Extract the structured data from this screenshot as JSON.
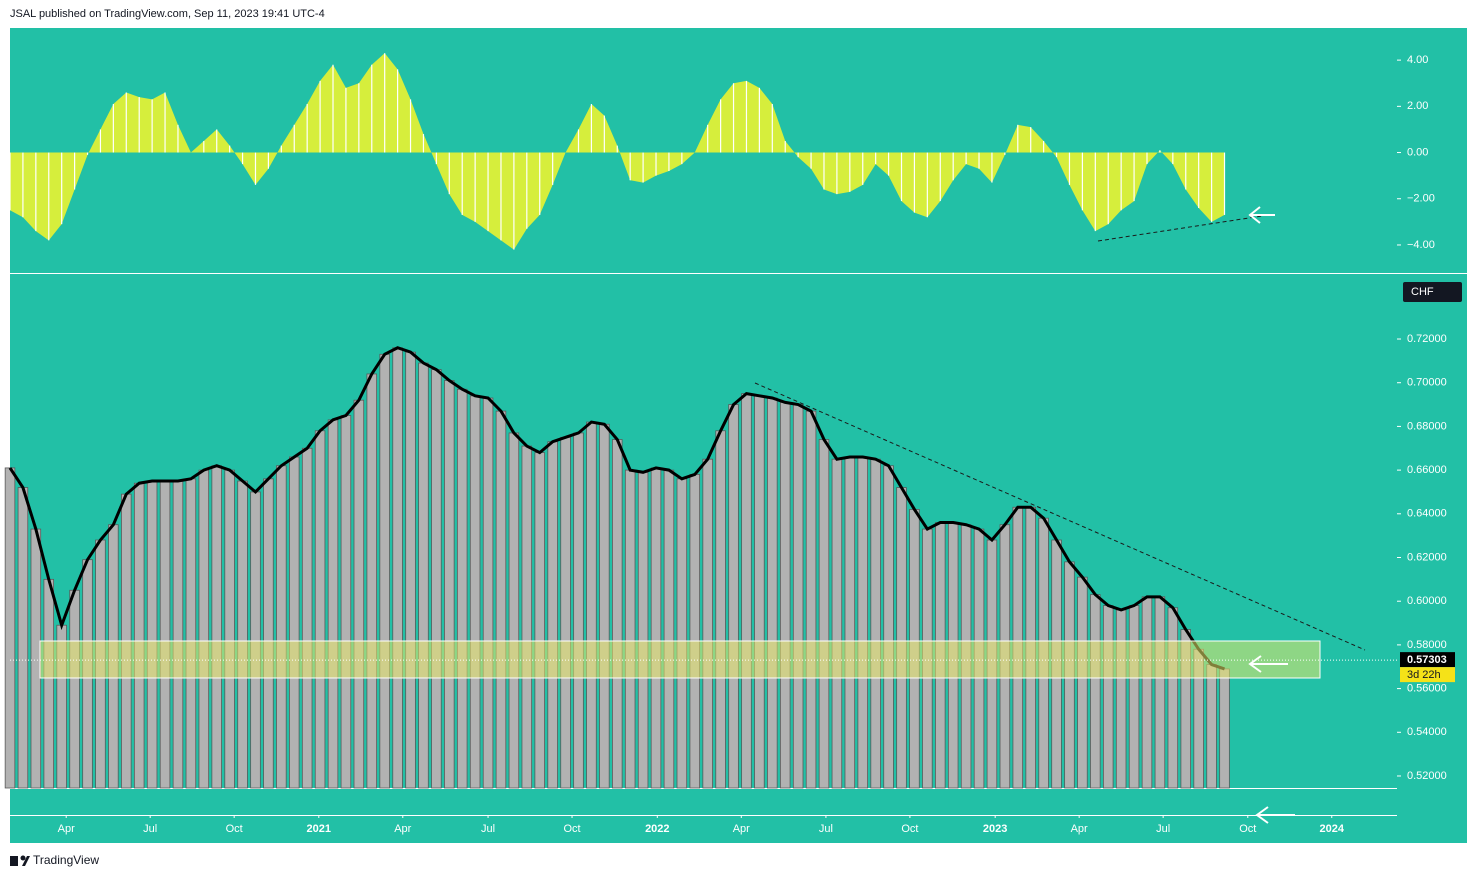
{
  "header": "JSAL published on TradingView.com, Sep 11, 2023 19:41 UTC-4",
  "footer": "TradingView",
  "chart_data": [
    {
      "type": "area",
      "xlim": [
        0,
        214.7
      ],
      "ylim": [
        -5.17,
        5.39
      ],
      "yticks": [
        {
          "value": 4,
          "label": "4.00"
        },
        {
          "value": 2,
          "label": "2.00"
        },
        {
          "value": 0,
          "label": "0.00"
        },
        {
          "value": -2,
          "label": "−2.00"
        },
        {
          "value": -4,
          "label": "−4.00"
        }
      ],
      "color": "#d6ee3c",
      "x": [
        0,
        2,
        4,
        6,
        8,
        10,
        12,
        14,
        16,
        18,
        20,
        22,
        24,
        26,
        28,
        30,
        32,
        34,
        36,
        38,
        40,
        42,
        44,
        46,
        48,
        50,
        52,
        54,
        56,
        58,
        60,
        62,
        64,
        66,
        68,
        70,
        72,
        74,
        76,
        78,
        80,
        82,
        84,
        86,
        88,
        90,
        92,
        94,
        96,
        98,
        100,
        102,
        104,
        106,
        108,
        110,
        112,
        114,
        116,
        118,
        120,
        122,
        124,
        126,
        128,
        130,
        132,
        134,
        136,
        138,
        140,
        142,
        144,
        146,
        148,
        150,
        152,
        154,
        156,
        158,
        160,
        162,
        164,
        166,
        168,
        170,
        172,
        174,
        176,
        178,
        180,
        182,
        184,
        186,
        188
      ],
      "values": [
        -2.5,
        -2.8,
        -3.4,
        -3.8,
        -3.1,
        -1.6,
        -0.1,
        1.0,
        2.1,
        2.6,
        2.4,
        2.3,
        2.6,
        1.2,
        0.0,
        0.5,
        1.0,
        0.3,
        -0.5,
        -1.4,
        -0.7,
        0.3,
        1.2,
        2.1,
        3.1,
        3.8,
        2.8,
        3.0,
        3.8,
        4.3,
        3.6,
        2.3,
        0.8,
        -0.5,
        -1.8,
        -2.7,
        -3.0,
        -3.4,
        -3.8,
        -4.2,
        -3.3,
        -2.7,
        -1.4,
        0.0,
        1.0,
        2.1,
        1.6,
        0.3,
        -1.2,
        -1.3,
        -1.0,
        -0.8,
        -0.5,
        0.0,
        1.2,
        2.3,
        3.0,
        3.1,
        2.8,
        2.1,
        0.5,
        -0.2,
        -0.7,
        -1.6,
        -1.8,
        -1.7,
        -1.4,
        -0.5,
        -1.0,
        -2.1,
        -2.6,
        -2.8,
        -2.1,
        -1.2,
        -0.5,
        -0.7,
        -1.3,
        -0.1,
        1.2,
        1.1,
        0.5,
        -0.2,
        -1.4,
        -2.5,
        -3.4,
        -3.1,
        -2.5,
        -2.1,
        -0.5,
        0.1,
        -0.5,
        -1.6,
        -2.4,
        -3.0,
        -2.7
      ]
    },
    {
      "type": "bar",
      "currency": "CHF",
      "last_price": 0.57303,
      "countdown": "3d 22h",
      "xlim": [
        0,
        214.7
      ],
      "xticks": [
        {
          "value": 8.7,
          "label": "Apr"
        },
        {
          "value": 21.7,
          "label": "Jul"
        },
        {
          "value": 34.7,
          "label": "Oct"
        },
        {
          "value": 47.8,
          "label": "2021"
        },
        {
          "value": 60.8,
          "label": "Apr"
        },
        {
          "value": 74,
          "label": "Jul"
        },
        {
          "value": 87,
          "label": "Oct"
        },
        {
          "value": 100.2,
          "label": "2022"
        },
        {
          "value": 113.2,
          "label": "Apr"
        },
        {
          "value": 126.3,
          "label": "Jul"
        },
        {
          "value": 139.3,
          "label": "Oct"
        },
        {
          "value": 152.5,
          "label": "2023"
        },
        {
          "value": 165.5,
          "label": "Apr"
        },
        {
          "value": 178.5,
          "label": "Jul"
        },
        {
          "value": 191.6,
          "label": "Oct"
        },
        {
          "value": 204.6,
          "label": "2024"
        }
      ],
      "ylim": [
        0.5145,
        0.7493
      ],
      "yticks": [
        {
          "value": 0.52,
          "label": "0.52000"
        },
        {
          "value": 0.54,
          "label": "0.54000"
        },
        {
          "value": 0.56,
          "label": "0.56000"
        },
        {
          "value": 0.58,
          "label": "0.58000"
        },
        {
          "value": 0.6,
          "label": "0.60000"
        },
        {
          "value": 0.62,
          "label": "0.62000"
        },
        {
          "value": 0.64,
          "label": "0.64000"
        },
        {
          "value": 0.66,
          "label": "0.66000"
        },
        {
          "value": 0.68,
          "label": "0.68000"
        },
        {
          "value": 0.7,
          "label": "0.70000"
        },
        {
          "value": 0.72,
          "label": "0.72000"
        }
      ],
      "color": "#b2b2b2",
      "x": [
        0,
        2,
        4,
        6,
        8,
        10,
        12,
        14,
        16,
        18,
        20,
        22,
        24,
        26,
        28,
        30,
        32,
        34,
        36,
        38,
        40,
        42,
        44,
        46,
        48,
        50,
        52,
        54,
        56,
        58,
        60,
        62,
        64,
        66,
        68,
        70,
        72,
        74,
        76,
        78,
        80,
        82,
        84,
        86,
        88,
        90,
        92,
        94,
        96,
        98,
        100,
        102,
        104,
        106,
        108,
        110,
        112,
        114,
        116,
        118,
        120,
        122,
        124,
        126,
        128,
        130,
        132,
        134,
        136,
        138,
        140,
        142,
        144,
        146,
        148,
        150,
        152,
        154,
        156,
        158,
        160,
        162,
        164,
        166,
        168,
        170,
        172,
        174,
        176,
        178,
        180,
        182,
        184,
        186,
        188
      ],
      "values": [
        0.661,
        0.652,
        0.633,
        0.61,
        0.589,
        0.605,
        0.619,
        0.628,
        0.635,
        0.649,
        0.654,
        0.655,
        0.655,
        0.655,
        0.656,
        0.66,
        0.662,
        0.66,
        0.655,
        0.65,
        0.656,
        0.662,
        0.666,
        0.67,
        0.678,
        0.683,
        0.685,
        0.692,
        0.704,
        0.713,
        0.716,
        0.714,
        0.709,
        0.706,
        0.701,
        0.697,
        0.694,
        0.693,
        0.687,
        0.677,
        0.671,
        0.668,
        0.673,
        0.675,
        0.677,
        0.682,
        0.681,
        0.674,
        0.66,
        0.659,
        0.661,
        0.66,
        0.656,
        0.658,
        0.665,
        0.678,
        0.69,
        0.695,
        0.694,
        0.693,
        0.691,
        0.69,
        0.687,
        0.674,
        0.665,
        0.666,
        0.666,
        0.665,
        0.662,
        0.652,
        0.642,
        0.633,
        0.636,
        0.636,
        0.635,
        0.633,
        0.628,
        0.635,
        0.643,
        0.643,
        0.638,
        0.628,
        0.618,
        0.611,
        0.603,
        0.598,
        0.596,
        0.598,
        0.602,
        0.602,
        0.597,
        0.587,
        0.578,
        0.571,
        0.569
      ]
    }
  ]
}
